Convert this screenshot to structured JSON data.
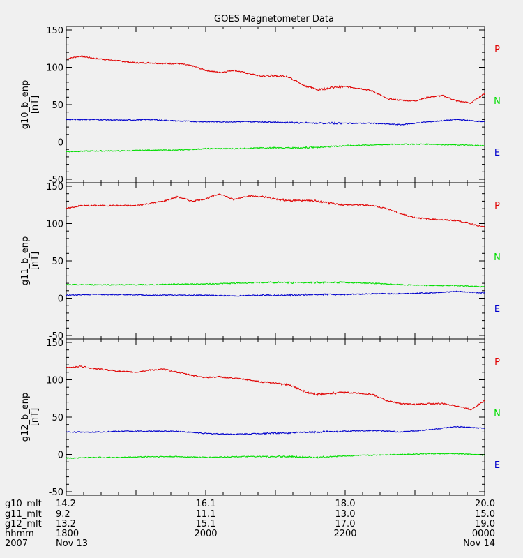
{
  "chart_data": {
    "type": "line",
    "title": "GOES Magnetometer Data",
    "x_range_hours": [
      18.0,
      24.0
    ],
    "x_tick_hours": [
      18,
      19,
      20,
      21,
      22,
      23,
      24
    ],
    "ylim": [
      -50,
      150
    ],
    "y_ticks": [
      -50,
      0,
      50,
      100,
      150
    ],
    "y_tick_labels": [
      "-50",
      "0",
      "50",
      "100",
      "150"
    ],
    "legend": [
      {
        "label": "P",
        "color": "#e00000"
      },
      {
        "label": "N",
        "color": "#00dd00"
      },
      {
        "label": "E",
        "color": "#0000cc"
      }
    ],
    "series_colors": {
      "P": "#e00000",
      "N": "#00dd00",
      "E": "#0000cc"
    },
    "panels": [
      {
        "ylabel": "g10_b_enp",
        "yunit": "[nT]",
        "series": [
          {
            "name": "P",
            "x": [
              18.0,
              18.2,
              18.4,
              18.6,
              18.8,
              19.0,
              19.2,
              19.4,
              19.6,
              19.8,
              20.0,
              20.2,
              20.4,
              20.6,
              20.8,
              21.0,
              21.2,
              21.4,
              21.6,
              21.8,
              22.0,
              22.2,
              22.4,
              22.6,
              22.8,
              23.0,
              23.2,
              23.4,
              23.6,
              23.8,
              24.0
            ],
            "values": [
              111,
              115,
              112,
              110,
              108,
              106,
              106,
              105,
              105,
              102,
              96,
              93,
              96,
              92,
              88,
              89,
              87,
              76,
              70,
              73,
              74,
              72,
              68,
              58,
              56,
              55,
              60,
              62,
              55,
              52,
              65
            ]
          },
          {
            "name": "N",
            "x": [
              18.0,
              18.4,
              18.8,
              19.2,
              19.6,
              20.0,
              20.4,
              20.8,
              21.2,
              21.6,
              22.0,
              22.4,
              22.8,
              23.2,
              23.6,
              24.0
            ],
            "values": [
              -13,
              -12,
              -12,
              -11,
              -11,
              -9,
              -9,
              -8,
              -8,
              -7,
              -5,
              -4,
              -3,
              -3,
              -4,
              -5
            ]
          },
          {
            "name": "E",
            "x": [
              18.0,
              18.4,
              18.8,
              19.2,
              19.6,
              20.0,
              20.4,
              20.8,
              21.2,
              21.6,
              22.0,
              22.4,
              22.8,
              23.2,
              23.6,
              24.0
            ],
            "values": [
              30,
              30,
              29,
              30,
              28,
              27,
              27,
              27,
              26,
              25,
              25,
              25,
              23,
              27,
              30,
              27
            ]
          }
        ]
      },
      {
        "ylabel": "g11_b_enp",
        "yunit": "[nT]",
        "series": [
          {
            "name": "P",
            "x": [
              18.0,
              18.2,
              18.4,
              18.6,
              18.8,
              19.0,
              19.2,
              19.4,
              19.6,
              19.8,
              20.0,
              20.2,
              20.4,
              20.6,
              20.8,
              21.0,
              21.2,
              21.4,
              21.6,
              21.8,
              22.0,
              22.2,
              22.4,
              22.6,
              22.8,
              23.0,
              23.2,
              23.4,
              23.6,
              23.8,
              24.0
            ],
            "values": [
              120,
              124,
              124,
              124,
              124,
              124,
              127,
              130,
              136,
              130,
              133,
              140,
              132,
              137,
              136,
              133,
              131,
              131,
              130,
              127,
              125,
              125,
              124,
              120,
              113,
              108,
              106,
              105,
              104,
              100,
              95
            ]
          },
          {
            "name": "N",
            "x": [
              18.0,
              18.4,
              18.8,
              19.2,
              19.6,
              20.0,
              20.4,
              20.8,
              21.2,
              21.6,
              22.0,
              22.4,
              22.8,
              23.2,
              23.6,
              24.0
            ],
            "values": [
              18,
              18,
              18,
              18,
              19,
              19,
              20,
              21,
              21,
              21,
              21,
              20,
              18,
              17,
              17,
              15
            ]
          },
          {
            "name": "E",
            "x": [
              18.0,
              18.4,
              18.8,
              19.2,
              19.6,
              20.0,
              20.4,
              20.8,
              21.2,
              21.6,
              22.0,
              22.4,
              22.8,
              23.2,
              23.6,
              24.0
            ],
            "values": [
              4,
              5,
              5,
              4,
              4,
              4,
              3,
              4,
              4,
              5,
              5,
              6,
              6,
              7,
              9,
              7
            ]
          }
        ]
      },
      {
        "ylabel": "g12_b_enp",
        "yunit": "[nT]",
        "series": [
          {
            "name": "P",
            "x": [
              18.0,
              18.2,
              18.4,
              18.6,
              18.8,
              19.0,
              19.2,
              19.4,
              19.6,
              19.8,
              20.0,
              20.2,
              20.4,
              20.6,
              20.8,
              21.0,
              21.2,
              21.4,
              21.6,
              21.8,
              22.0,
              22.2,
              22.4,
              22.6,
              22.8,
              23.0,
              23.2,
              23.4,
              23.6,
              23.8,
              24.0
            ],
            "values": [
              116,
              118,
              115,
              113,
              111,
              110,
              113,
              114,
              110,
              106,
              103,
              104,
              102,
              100,
              97,
              96,
              93,
              85,
              80,
              82,
              83,
              82,
              80,
              72,
              68,
              67,
              68,
              68,
              65,
              60,
              72
            ]
          },
          {
            "name": "N",
            "x": [
              18.0,
              18.4,
              18.8,
              19.2,
              19.6,
              20.0,
              20.4,
              20.8,
              21.2,
              21.6,
              22.0,
              22.4,
              22.8,
              23.2,
              23.6,
              24.0
            ],
            "values": [
              -5,
              -4,
              -4,
              -3,
              -3,
              -4,
              -3,
              -3,
              -3,
              -4,
              -2,
              -1,
              0,
              1,
              1,
              -1
            ]
          },
          {
            "name": "E",
            "x": [
              18.0,
              18.4,
              18.8,
              19.2,
              19.6,
              20.0,
              20.4,
              20.8,
              21.2,
              21.6,
              22.0,
              22.4,
              22.8,
              23.2,
              23.6,
              24.0
            ],
            "values": [
              30,
              30,
              31,
              31,
              31,
              28,
              27,
              28,
              29,
              30,
              31,
              32,
              30,
              33,
              37,
              35
            ]
          }
        ]
      }
    ],
    "x_axis_rows": [
      {
        "label": "g10_mlt",
        "values": [
          "14.2",
          "16.1",
          "18.0",
          "20.0"
        ]
      },
      {
        "label": "g11_mlt",
        "values": [
          "9.2",
          "11.1",
          "13.0",
          "15.0"
        ]
      },
      {
        "label": "g12_mlt",
        "values": [
          "13.2",
          "15.1",
          "17.0",
          "19.0"
        ]
      },
      {
        "label": "hhmm",
        "values": [
          "1800",
          "2000",
          "2200",
          "0000"
        ]
      },
      {
        "label": "2007",
        "values": [
          "Nov 13",
          "",
          "",
          "Nov 14"
        ]
      }
    ]
  }
}
